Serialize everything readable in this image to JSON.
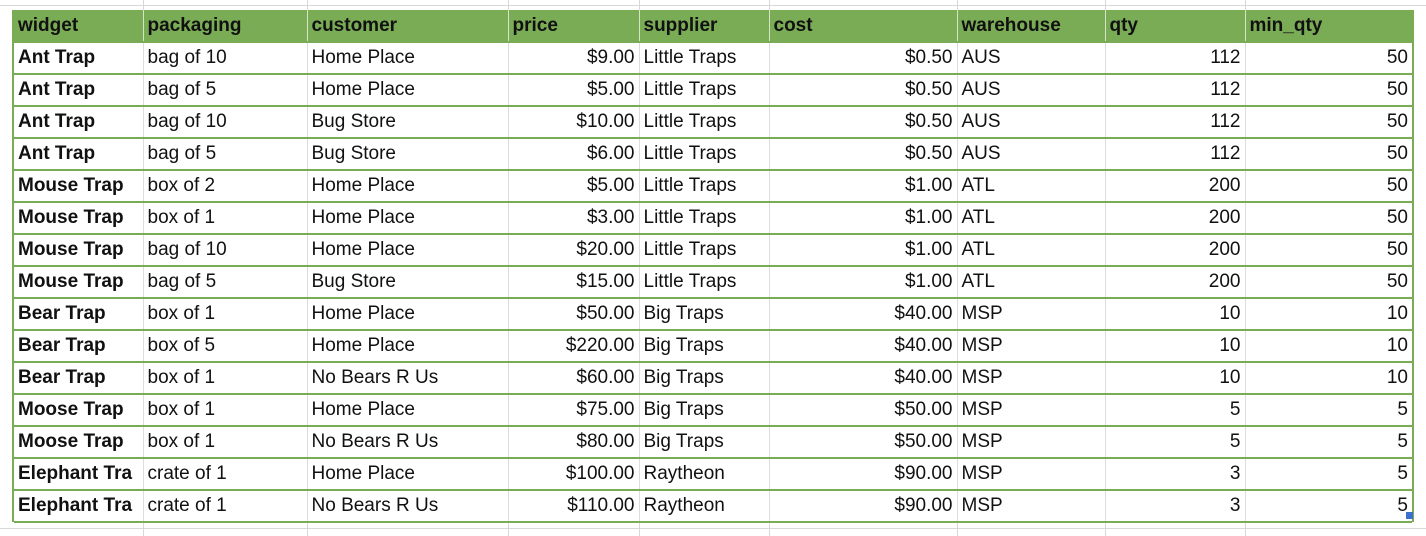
{
  "table": {
    "headers": [
      "widget",
      "packaging",
      "customer",
      "price",
      "supplier",
      "cost",
      "warehouse",
      "qty",
      "min_qty"
    ],
    "rows": [
      [
        "Ant Trap",
        "bag of 10",
        "Home Place",
        "$9.00",
        "Little Traps",
        "$0.50",
        "AUS",
        "112",
        "50"
      ],
      [
        "Ant Trap",
        "bag of 5",
        "Home Place",
        "$5.00",
        "Little Traps",
        "$0.50",
        "AUS",
        "112",
        "50"
      ],
      [
        "Ant Trap",
        "bag of 10",
        "Bug Store",
        "$10.00",
        "Little Traps",
        "$0.50",
        "AUS",
        "112",
        "50"
      ],
      [
        "Ant Trap",
        "bag of 5",
        "Bug Store",
        "$6.00",
        "Little Traps",
        "$0.50",
        "AUS",
        "112",
        "50"
      ],
      [
        "Mouse Trap",
        "box of 2",
        "Home Place",
        "$5.00",
        "Little Traps",
        "$1.00",
        "ATL",
        "200",
        "50"
      ],
      [
        "Mouse Trap",
        "box of 1",
        "Home Place",
        "$3.00",
        "Little Traps",
        "$1.00",
        "ATL",
        "200",
        "50"
      ],
      [
        "Mouse Trap",
        "bag of 10",
        "Home Place",
        "$20.00",
        "Little Traps",
        "$1.00",
        "ATL",
        "200",
        "50"
      ],
      [
        "Mouse Trap",
        "bag of 5",
        "Bug Store",
        "$15.00",
        "Little Traps",
        "$1.00",
        "ATL",
        "200",
        "50"
      ],
      [
        "Bear Trap",
        "box of 1",
        "Home Place",
        "$50.00",
        "Big Traps",
        "$40.00",
        "MSP",
        "10",
        "10"
      ],
      [
        "Bear Trap",
        "box of 5",
        "Home Place",
        "$220.00",
        "Big Traps",
        "$40.00",
        "MSP",
        "10",
        "10"
      ],
      [
        "Bear Trap",
        "box of 1",
        "No Bears R Us",
        "$60.00",
        "Big Traps",
        "$40.00",
        "MSP",
        "10",
        "10"
      ],
      [
        "Moose Trap",
        "box of 1",
        "Home Place",
        "$75.00",
        "Big Traps",
        "$50.00",
        "MSP",
        "5",
        "5"
      ],
      [
        "Moose Trap",
        "box of 1",
        "No Bears R Us",
        "$80.00",
        "Big Traps",
        "$50.00",
        "MSP",
        "5",
        "5"
      ],
      [
        "Elephant Tra",
        "crate of 1",
        "Home Place",
        "$100.00",
        "Raytheon",
        "$90.00",
        "MSP",
        "3",
        "5"
      ],
      [
        "Elephant Tra",
        "crate of 1",
        "No Bears R Us",
        "$110.00",
        "Raytheon",
        "$90.00",
        "MSP",
        "3",
        "5"
      ]
    ]
  },
  "colors": {
    "header_bg": "#7aab55",
    "row_border": "#7aab55",
    "selection_handle": "#3b6fd0"
  }
}
